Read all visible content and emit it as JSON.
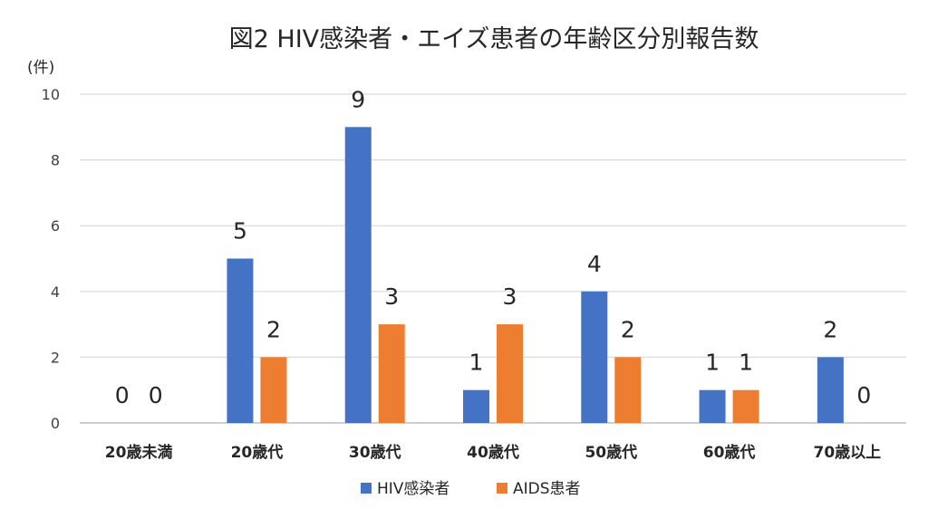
{
  "chart_data": {
    "type": "bar",
    "title": "図2 HIV感染者・エイズ患者の年齢区分別報告数",
    "y_unit_label": "(件)",
    "ylim": [
      0,
      10
    ],
    "yticks": [
      0,
      2,
      4,
      6,
      8,
      10
    ],
    "grid": true,
    "legend_position": "bottom",
    "categories": [
      "20歳未満",
      "20歳代",
      "30歳代",
      "40歳代",
      "50歳代",
      "60歳代",
      "70歳以上"
    ],
    "series": [
      {
        "name": "HIV感染者",
        "color": "#4472c4",
        "values": [
          0,
          5,
          9,
          1,
          4,
          1,
          2
        ]
      },
      {
        "name": "AIDS患者",
        "color": "#ed7d31",
        "values": [
          0,
          2,
          3,
          3,
          2,
          1,
          0
        ]
      }
    ]
  }
}
